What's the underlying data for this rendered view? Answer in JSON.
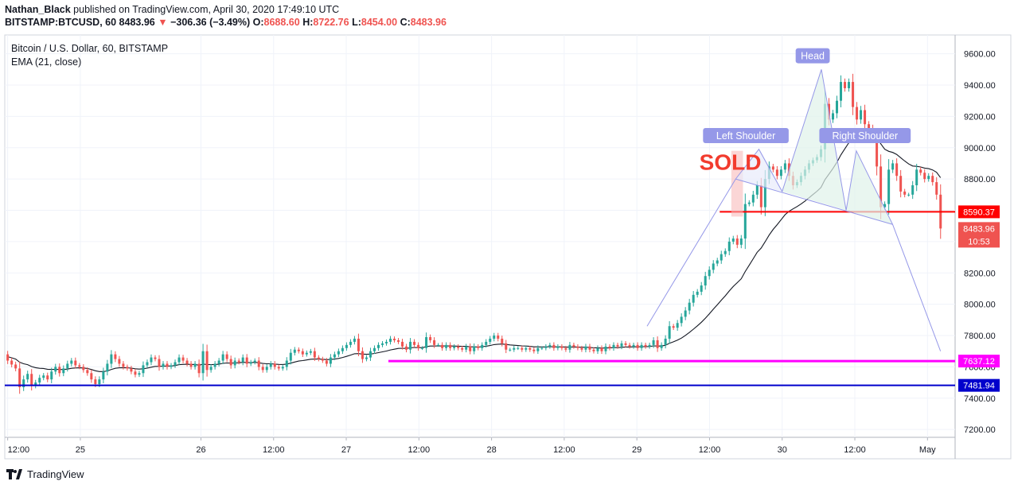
{
  "header": {
    "author": "Nathan_Black",
    "published": "published on TradingView.com, April 30, 2020 17:49:10 UTC",
    "symbol": "BITSTAMP:BTCUSD, 60",
    "last": "8483.96",
    "change": "−306.36 (−3.49%)",
    "o_label": "O:",
    "o": "8688.60",
    "h_label": "H:",
    "h": "8722.76",
    "l_label": "L:",
    "l": "8454.00",
    "c_label": "C:",
    "c": "8483.96"
  },
  "legend": {
    "title": "Bitcoin / U.S. Dollar, 60, BITSTAMP",
    "indicator": "EMA (21, close)"
  },
  "footer": {
    "brand": "TradingView"
  },
  "colors": {
    "up": "#26a69a",
    "down": "#ef5350",
    "ema": "#131722",
    "pattern": "#9598e8",
    "resistance": "#ff0000",
    "support1": "#ff00ff",
    "support2": "#0000cc"
  },
  "chart_data": {
    "type": "candlestick",
    "ylim": [
      7150,
      9720
    ],
    "y_ticks": [
      "9600.00",
      "9400.00",
      "9200.00",
      "9000.00",
      "8800.00",
      "8600.00",
      "8400.00",
      "8200.00",
      "8000.00",
      "7800.00",
      "7600.00",
      "7400.00",
      "7200.00"
    ],
    "y_tick_values": [
      9600,
      9400,
      9200,
      9000,
      8800,
      8600,
      8400,
      8200,
      8000,
      7800,
      7600,
      7400,
      7200
    ],
    "x_range": [
      -0.02,
      6.52
    ],
    "x_ticks": [
      {
        "t": 0.0,
        "label": "12:00"
      },
      {
        "t": 0.5,
        "label": "25"
      },
      {
        "t": 1.33,
        "label": "26"
      },
      {
        "t": 1.83,
        "label": "12:00"
      },
      {
        "t": 2.33,
        "label": "27"
      },
      {
        "t": 2.83,
        "label": "12:00"
      },
      {
        "t": 3.33,
        "label": "28"
      },
      {
        "t": 3.83,
        "label": "12:00"
      },
      {
        "t": 4.33,
        "label": "29"
      },
      {
        "t": 4.83,
        "label": "12:00"
      },
      {
        "t": 5.33,
        "label": "30"
      },
      {
        "t": 5.83,
        "label": "12:00"
      },
      {
        "t": 6.33,
        "label": "May"
      }
    ],
    "close": [
      7640,
      7615,
      7590,
      7470,
      7520,
      7555,
      7480,
      7500,
      7530,
      7545,
      7520,
      7570,
      7600,
      7560,
      7590,
      7620,
      7640,
      7610,
      7600,
      7580,
      7560,
      7520,
      7490,
      7520,
      7570,
      7620,
      7680,
      7650,
      7620,
      7600,
      7590,
      7570,
      7550,
      7560,
      7610,
      7630,
      7660,
      7650,
      7600,
      7620,
      7600,
      7610,
      7630,
      7660,
      7640,
      7620,
      7600,
      7620,
      7560,
      7700,
      7580,
      7600,
      7620,
      7640,
      7680,
      7650,
      7610,
      7640,
      7630,
      7660,
      7620,
      7630,
      7640,
      7600,
      7580,
      7600,
      7620,
      7600,
      7590,
      7600,
      7640,
      7690,
      7710,
      7700,
      7680,
      7690,
      7700,
      7660,
      7650,
      7640,
      7620,
      7660,
      7680,
      7700,
      7720,
      7740,
      7760,
      7780,
      7700,
      7650,
      7660,
      7700,
      7720,
      7740,
      7750,
      7760,
      7780,
      7770,
      7760,
      7730,
      7710,
      7760,
      7740,
      7720,
      7720,
      7790,
      7770,
      7740,
      7740,
      7720,
      7740,
      7720,
      7730,
      7720,
      7710,
      7730,
      7700,
      7730,
      7720,
      7740,
      7760,
      7780,
      7800,
      7780,
      7750,
      7710,
      7710,
      7720,
      7720,
      7710,
      7720,
      7710,
      7700,
      7720,
      7720,
      7730,
      7740,
      7720,
      7730,
      7720,
      7710,
      7740,
      7730,
      7720,
      7710,
      7730,
      7710,
      7700,
      7720,
      7700,
      7730,
      7720,
      7740,
      7730,
      7750,
      7740,
      7730,
      7740,
      7720,
      7740,
      7730,
      7740,
      7770,
      7720,
      7740,
      7780,
      7860,
      7850,
      7880,
      7920,
      7960,
      8010,
      8060,
      8080,
      8120,
      8180,
      8220,
      8260,
      8280,
      8320,
      8340,
      8400,
      8420,
      8380,
      8420,
      8640,
      8650,
      8700,
      8760,
      8620,
      8800,
      8880,
      8860,
      8820,
      8860,
      8900,
      8820,
      8760,
      8780,
      8820,
      8860,
      8900,
      8920,
      8940,
      8990,
      9280,
      9180,
      9220,
      9300,
      9420,
      9380,
      9420,
      9260,
      9180,
      9240,
      9150,
      9120,
      9060,
      8880,
      8620,
      8640,
      8860,
      8900,
      8820,
      8720,
      8700,
      8700,
      8760,
      8860,
      8840,
      8800,
      8820,
      8780,
      8700,
      8483.96
    ],
    "ema": [
      7665,
      7658,
      7650,
      7630,
      7620,
      7614,
      7602,
      7595,
      7591,
      7590,
      7585,
      7583,
      7585,
      7583,
      7583,
      7586,
      7591,
      7593,
      7594,
      7593,
      7590,
      7583,
      7575,
      7570,
      7570,
      7574,
      7584,
      7591,
      7594,
      7595,
      7594,
      7592,
      7588,
      7586,
      7588,
      7592,
      7598,
      7603,
      7603,
      7605,
      7605,
      7606,
      7608,
      7614,
      7616,
      7617,
      7615,
      7616,
      7610,
      7618,
      7615,
      7614,
      7615,
      7617,
      7623,
      7625,
      7624,
      7625,
      7626,
      7629,
      7628,
      7628,
      7629,
      7626,
      7622,
      7620,
      7620,
      7618,
      7616,
      7615,
      7618,
      7624,
      7631,
      7637,
      7640,
      7644,
      7649,
      7650,
      7650,
      7649,
      7646,
      7647,
      7650,
      7654,
      7660,
      7667,
      7675,
      7684,
      7685,
      7682,
      7680,
      7682,
      7686,
      7691,
      7696,
      7701,
      7708,
      7713,
      7718,
      7719,
      7718,
      7722,
      7724,
      7723,
      7723,
      7729,
      7733,
      7733,
      7734,
      7733,
      7734,
      7733,
      7733,
      7732,
      7731,
      7731,
      7728,
      7728,
      7727,
      7729,
      7732,
      7736,
      7742,
      7745,
      7746,
      7743,
      7740,
      7738,
      7736,
      7734,
      7733,
      7731,
      7728,
      7728,
      7727,
      7728,
      7729,
      7728,
      7728,
      7728,
      7726,
      7727,
      7727,
      7727,
      7725,
      7726,
      7724,
      7722,
      7722,
      7720,
      7721,
      7721,
      7723,
      7723,
      7725,
      7727,
      7727,
      7728,
      7728,
      7729,
      7729,
      7730,
      7734,
      7733,
      7733,
      7738,
      7751,
      7760,
      7771,
      7784,
      7801,
      7820,
      7841,
      7862,
      7885,
      7911,
      7939,
      7968,
      7996,
      8026,
      8054,
      8085,
      8114,
      8138,
      8163,
      8209,
      8249,
      8290,
      8332,
      8359,
      8399,
      8442,
      8478,
      8508,
      8540,
      8572,
      8594,
      8609,
      8624,
      8640,
      8659,
      8680,
      8701,
      8722,
      8746,
      8796,
      8831,
      8867,
      8907,
      8954,
      8993,
      9032,
      9052,
      9063,
      9079,
      9085,
      9088,
      9085,
      9066,
      9025,
      8990,
      8977,
      8970,
      8957,
      8936,
      8915,
      8896,
      8883,
      8881,
      8877,
      8870,
      8866,
      8858,
      8843,
      8809
    ],
    "horizontal_levels": [
      {
        "value": 8590.37,
        "label": "8590.37",
        "color": "#ff0000",
        "from_t": 4.9
      },
      {
        "value": 7637.12,
        "label": "7637.12",
        "color": "#ff00ff",
        "from_t": 2.62
      },
      {
        "value": 7481.94,
        "label": "7481.94",
        "color": "#0000cc",
        "from_t": -0.02
      }
    ],
    "last_price": {
      "value": 8483.96,
      "label": "8483.96",
      "countdown": "10:53"
    },
    "pattern_path": [
      {
        "t": 4.4,
        "v": 7860
      },
      {
        "t": 5.01,
        "v": 8800
      },
      {
        "t": 5.17,
        "v": 8990
      },
      {
        "t": 5.33,
        "v": 8720
      },
      {
        "t": 5.6,
        "v": 9500
      },
      {
        "t": 5.77,
        "v": 8600
      },
      {
        "t": 5.84,
        "v": 8980
      },
      {
        "t": 6.09,
        "v": 8510
      },
      {
        "t": 6.42,
        "v": 7700
      }
    ],
    "neckline": [
      {
        "t": 5.01,
        "v": 8800
      },
      {
        "t": 6.09,
        "v": 8510
      }
    ],
    "pattern_labels": [
      {
        "text": "Left Shoulder",
        "t": 5.08,
        "v": 9070
      },
      {
        "text": "Head",
        "t": 5.54,
        "v": 9580
      },
      {
        "text": "Right Shoulder",
        "t": 5.9,
        "v": 9070
      }
    ],
    "sold": {
      "text": "SOLD",
      "t": 4.76,
      "v": 8860,
      "box": {
        "t0": 4.98,
        "t1": 5.06,
        "v0": 8560,
        "v1": 8980
      }
    }
  }
}
